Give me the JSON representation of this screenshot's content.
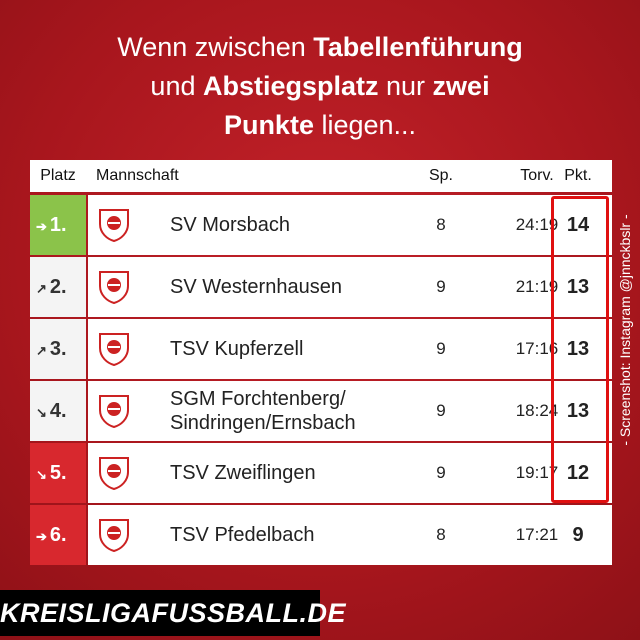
{
  "headline": {
    "lines": [
      [
        {
          "text": "Wenn zwischen ",
          "bold": false
        },
        {
          "text": "Tabellenführung",
          "bold": true
        }
      ],
      [
        {
          "text": "und ",
          "bold": false
        },
        {
          "text": "Abstiegsplatz",
          "bold": true
        },
        {
          "text": " nur ",
          "bold": false
        },
        {
          "text": "zwei",
          "bold": true
        }
      ],
      [
        {
          "text": "Punkte",
          "bold": true
        },
        {
          "text": " liegen...",
          "bold": false
        }
      ]
    ]
  },
  "table": {
    "columns": [
      "Platz",
      "Mannschaft",
      "Sp.",
      "Torv.",
      "Pkt."
    ],
    "rows": [
      {
        "rank": "1.",
        "trend": "right",
        "zone": "#8bc34a",
        "team": "SV Morsbach",
        "games": "8",
        "goals": "24:19",
        "points": "14",
        "highlight": true
      },
      {
        "rank": "2.",
        "trend": "up",
        "zone": null,
        "team": "SV Westernhausen",
        "games": "9",
        "goals": "21:19",
        "points": "13",
        "highlight": true
      },
      {
        "rank": "3.",
        "trend": "up",
        "zone": null,
        "team": "TSV Kupferzell",
        "games": "9",
        "goals": "17:16",
        "points": "13",
        "highlight": true
      },
      {
        "rank": "4.",
        "trend": "down",
        "zone": null,
        "team": "SGM Forchtenberg/ Sindringen/Ernsbach",
        "games": "9",
        "goals": "18:24",
        "points": "13",
        "highlight": true
      },
      {
        "rank": "5.",
        "trend": "down",
        "zone": "#d8282e",
        "team": "TSV Zweiflingen",
        "games": "9",
        "goals": "19:17",
        "points": "12",
        "highlight": true
      },
      {
        "rank": "6.",
        "trend": "right",
        "zone": "#d8282e",
        "team": "TSV Pfedelbach",
        "games": "8",
        "goals": "17:21",
        "points": "9",
        "highlight": false
      }
    ]
  },
  "credit": "- Screenshot: Instagram @jnnckbslr -",
  "footer": "KREISLIGAFUSSBALL.DE"
}
